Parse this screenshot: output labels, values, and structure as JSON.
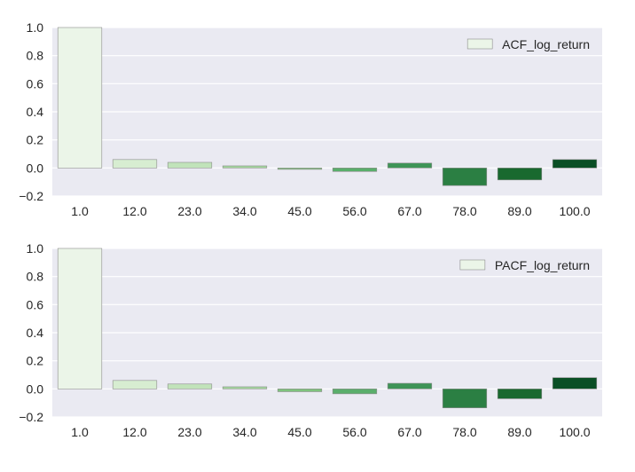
{
  "chart_data": [
    {
      "type": "bar",
      "categories": [
        "1.0",
        "12.0",
        "23.0",
        "34.0",
        "45.0",
        "56.0",
        "67.0",
        "78.0",
        "89.0",
        "100.0"
      ],
      "series": [
        {
          "name": "ACF_log_return",
          "values": [
            1.0,
            0.06,
            0.04,
            0.015,
            -0.01,
            -0.025,
            0.035,
            -0.125,
            -0.085,
            0.06
          ]
        }
      ],
      "ylim": [
        -0.2,
        1.0
      ],
      "yticks": [
        "1.0",
        "0.8",
        "0.6",
        "0.4",
        "0.2",
        "0.0",
        "−0.2"
      ],
      "ytick_values": [
        1.0,
        0.8,
        0.6,
        0.4,
        0.2,
        0.0,
        -0.2
      ],
      "grid": true,
      "legend_position": "top-right",
      "title": "",
      "xlabel": "",
      "ylabel": ""
    },
    {
      "type": "bar",
      "categories": [
        "1.0",
        "12.0",
        "23.0",
        "34.0",
        "45.0",
        "56.0",
        "67.0",
        "78.0",
        "89.0",
        "100.0"
      ],
      "series": [
        {
          "name": "PACF_log_return",
          "values": [
            1.0,
            0.06,
            0.035,
            0.015,
            -0.02,
            -0.035,
            0.04,
            -0.135,
            -0.07,
            0.08
          ]
        }
      ],
      "ylim": [
        -0.2,
        1.0
      ],
      "yticks": [
        "1.0",
        "0.8",
        "0.6",
        "0.4",
        "0.2",
        "0.0",
        "−0.2"
      ],
      "ytick_values": [
        1.0,
        0.8,
        0.6,
        0.4,
        0.2,
        0.0,
        -0.2
      ],
      "grid": true,
      "legend_position": "top-right",
      "title": "",
      "xlabel": "",
      "ylabel": ""
    }
  ],
  "colors": {
    "plot_background": "#eaeaf2",
    "grid": "#ffffff",
    "text": "#262626",
    "bar_palette": [
      "#ebf5e8",
      "#d7edd1",
      "#c1e3ba",
      "#a2d69c",
      "#7fc37e",
      "#5aae6b",
      "#3f9457",
      "#2b7f43",
      "#19692f",
      "#0a4f25"
    ],
    "bar_edge": "#8c8c8c"
  }
}
